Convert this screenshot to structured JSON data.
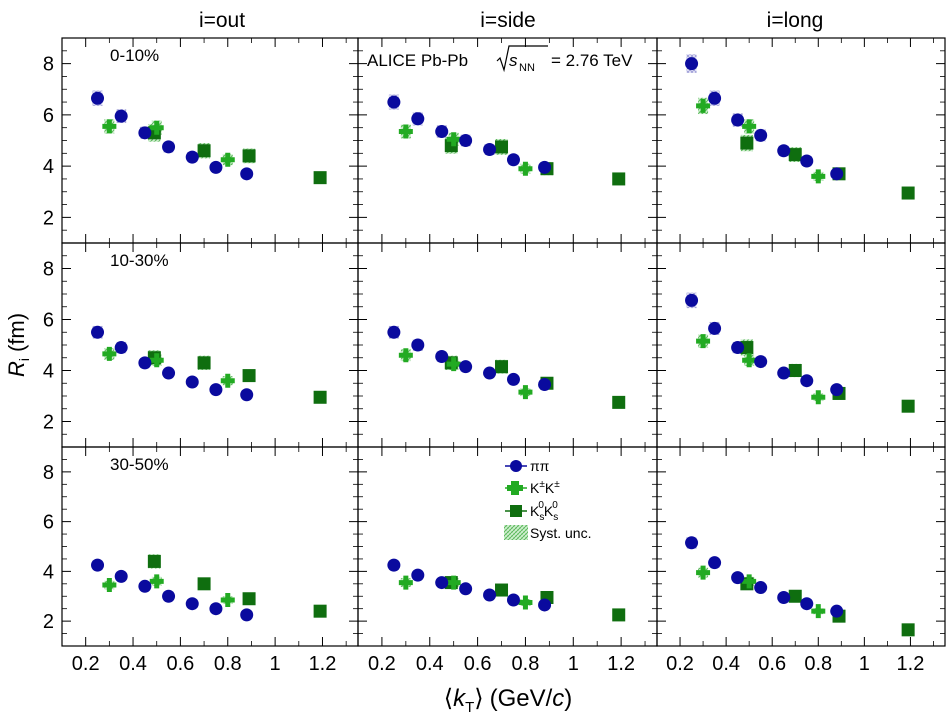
{
  "figure": {
    "column_titles": [
      "i=out",
      "i=side",
      "i=long"
    ],
    "row_labels": [
      "0-10%",
      "10-30%",
      "30-50%"
    ],
    "experiment_label": "ALICE Pb-Pb",
    "energy_symbol": "s",
    "energy_subscript": "NN",
    "energy_value": "= 2.76 TeV",
    "ylabel_main": "R",
    "ylabel_sub": "i",
    "ylabel_unit": "(fm)",
    "xlabel_open": "⟨",
    "xlabel_main": "k",
    "xlabel_sub": "T",
    "xlabel_close": "⟩",
    "xlabel_unit_open": "(GeV/",
    "xlabel_unit_italic": "c",
    "xlabel_unit_close": ")",
    "legend": [
      {
        "key": "pipi",
        "label": "ππ"
      },
      {
        "key": "kch",
        "label": "K",
        "sup1": "±",
        "mid": "K",
        "sup2": "±"
      },
      {
        "key": "k0",
        "label": "K",
        "sub1": "s",
        "sup1": "0",
        "mid": "K",
        "sub2": "s",
        "sup2": "0"
      },
      {
        "key": "syst",
        "label": "Syst. unc."
      }
    ]
  },
  "chart_data": {
    "type": "scatter",
    "layout": "3x3 grid: rows are centrality classes, columns are radius components",
    "xlim": [
      0.1,
      1.35
    ],
    "ylim": [
      1.0,
      9.0
    ],
    "xticks": [
      0.2,
      0.4,
      0.6,
      0.8,
      1,
      1.2
    ],
    "xtick_labels": [
      "0.2",
      "0.4",
      "0.6",
      "0.8",
      "1",
      "1.2"
    ],
    "yticks": [
      2,
      4,
      6,
      8
    ],
    "ytick_labels": [
      "2",
      "4",
      "6",
      "8"
    ],
    "colors": {
      "pipi": "#0a0a9e",
      "kch": "#22aa22",
      "k0": "#0f6e0f",
      "syst": "#7fcf7f",
      "pisyst": "#8f8fd0"
    },
    "panels": [
      {
        "row": 0,
        "col": 0,
        "pipi": [
          [
            0.25,
            6.65
          ],
          [
            0.35,
            5.95
          ],
          [
            0.45,
            5.3
          ],
          [
            0.55,
            4.75
          ],
          [
            0.65,
            4.35
          ],
          [
            0.75,
            3.95
          ],
          [
            0.88,
            3.7
          ]
        ],
        "kch": [
          [
            0.3,
            5.55
          ],
          [
            0.5,
            5.5
          ],
          [
            0.8,
            4.25
          ]
        ],
        "k0": [
          [
            0.49,
            5.3
          ],
          [
            0.7,
            4.6
          ],
          [
            0.89,
            4.4
          ],
          [
            1.19,
            3.55
          ]
        ]
      },
      {
        "row": 0,
        "col": 1,
        "pipi": [
          [
            0.25,
            6.5
          ],
          [
            0.35,
            5.85
          ],
          [
            0.45,
            5.35
          ],
          [
            0.55,
            5.0
          ],
          [
            0.65,
            4.65
          ],
          [
            0.75,
            4.25
          ],
          [
            0.88,
            3.95
          ]
        ],
        "kch": [
          [
            0.3,
            5.35
          ],
          [
            0.5,
            5.05
          ],
          [
            0.8,
            3.9
          ]
        ],
        "k0": [
          [
            0.49,
            4.8
          ],
          [
            0.7,
            4.75
          ],
          [
            0.89,
            3.9
          ],
          [
            1.19,
            3.5
          ]
        ]
      },
      {
        "row": 0,
        "col": 2,
        "pipi": [
          [
            0.25,
            8.0
          ],
          [
            0.35,
            6.65
          ],
          [
            0.45,
            5.8
          ],
          [
            0.55,
            5.2
          ],
          [
            0.65,
            4.6
          ],
          [
            0.75,
            4.2
          ],
          [
            0.88,
            3.7
          ]
        ],
        "kch": [
          [
            0.3,
            6.35
          ],
          [
            0.5,
            5.55
          ],
          [
            0.8,
            3.6
          ]
        ],
        "k0": [
          [
            0.49,
            4.9
          ],
          [
            0.7,
            4.45
          ],
          [
            0.89,
            3.7
          ],
          [
            1.19,
            2.95
          ]
        ]
      },
      {
        "row": 1,
        "col": 0,
        "pipi": [
          [
            0.25,
            5.5
          ],
          [
            0.35,
            4.9
          ],
          [
            0.45,
            4.3
          ],
          [
            0.55,
            3.9
          ],
          [
            0.65,
            3.55
          ],
          [
            0.75,
            3.25
          ],
          [
            0.88,
            3.05
          ]
        ],
        "kch": [
          [
            0.3,
            4.65
          ],
          [
            0.5,
            4.4
          ],
          [
            0.8,
            3.6
          ]
        ],
        "k0": [
          [
            0.49,
            4.5
          ],
          [
            0.7,
            4.3
          ],
          [
            0.89,
            3.8
          ],
          [
            1.19,
            2.95
          ]
        ]
      },
      {
        "row": 1,
        "col": 1,
        "pipi": [
          [
            0.25,
            5.5
          ],
          [
            0.35,
            5.0
          ],
          [
            0.45,
            4.55
          ],
          [
            0.55,
            4.15
          ],
          [
            0.65,
            3.9
          ],
          [
            0.75,
            3.65
          ],
          [
            0.88,
            3.45
          ]
        ],
        "kch": [
          [
            0.3,
            4.6
          ],
          [
            0.5,
            4.25
          ],
          [
            0.8,
            3.15
          ]
        ],
        "k0": [
          [
            0.49,
            4.3
          ],
          [
            0.7,
            4.15
          ],
          [
            0.89,
            3.5
          ],
          [
            1.19,
            2.75
          ]
        ]
      },
      {
        "row": 1,
        "col": 2,
        "pipi": [
          [
            0.25,
            6.75
          ],
          [
            0.35,
            5.65
          ],
          [
            0.45,
            4.9
          ],
          [
            0.55,
            4.35
          ],
          [
            0.65,
            3.9
          ],
          [
            0.75,
            3.6
          ],
          [
            0.88,
            3.25
          ]
        ],
        "kch": [
          [
            0.3,
            5.15
          ],
          [
            0.5,
            4.4
          ],
          [
            0.8,
            2.95
          ]
        ],
        "k0": [
          [
            0.49,
            4.9
          ],
          [
            0.7,
            4.0
          ],
          [
            0.89,
            3.1
          ],
          [
            1.19,
            2.6
          ]
        ]
      },
      {
        "row": 2,
        "col": 0,
        "pipi": [
          [
            0.25,
            4.25
          ],
          [
            0.35,
            3.8
          ],
          [
            0.45,
            3.4
          ],
          [
            0.55,
            3.0
          ],
          [
            0.65,
            2.7
          ],
          [
            0.75,
            2.5
          ],
          [
            0.88,
            2.25
          ]
        ],
        "kch": [
          [
            0.3,
            3.45
          ],
          [
            0.5,
            3.6
          ],
          [
            0.8,
            2.85
          ]
        ],
        "k0": [
          [
            0.49,
            4.4
          ],
          [
            0.7,
            3.5
          ],
          [
            0.89,
            2.9
          ],
          [
            1.19,
            2.4
          ]
        ]
      },
      {
        "row": 2,
        "col": 1,
        "pipi": [
          [
            0.25,
            4.25
          ],
          [
            0.35,
            3.85
          ],
          [
            0.45,
            3.55
          ],
          [
            0.55,
            3.3
          ],
          [
            0.65,
            3.05
          ],
          [
            0.75,
            2.85
          ],
          [
            0.88,
            2.65
          ]
        ],
        "kch": [
          [
            0.3,
            3.55
          ],
          [
            0.5,
            3.55
          ],
          [
            0.8,
            2.75
          ]
        ],
        "k0": [
          [
            0.49,
            3.55
          ],
          [
            0.7,
            3.25
          ],
          [
            0.89,
            2.95
          ],
          [
            1.19,
            2.25
          ]
        ]
      },
      {
        "row": 2,
        "col": 2,
        "pipi": [
          [
            0.25,
            5.15
          ],
          [
            0.35,
            4.35
          ],
          [
            0.45,
            3.75
          ],
          [
            0.55,
            3.35
          ],
          [
            0.65,
            2.95
          ],
          [
            0.75,
            2.7
          ],
          [
            0.88,
            2.4
          ]
        ],
        "kch": [
          [
            0.3,
            3.95
          ],
          [
            0.5,
            3.6
          ],
          [
            0.8,
            2.4
          ]
        ],
        "k0": [
          [
            0.49,
            3.5
          ],
          [
            0.7,
            3.0
          ],
          [
            0.89,
            2.2
          ],
          [
            1.19,
            1.65
          ]
        ]
      }
    ]
  }
}
